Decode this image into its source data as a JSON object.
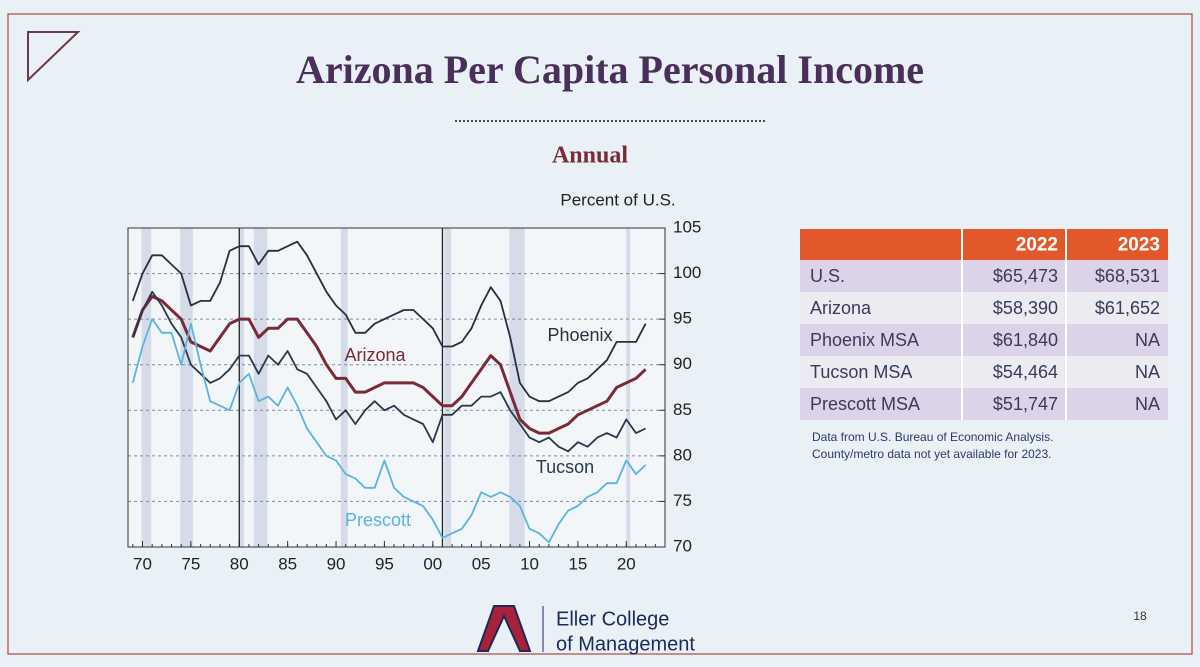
{
  "slide": {
    "title": "Arizona Per Capita Personal Income",
    "page_number": "18",
    "logo_line1": "Eller College",
    "logo_line2": "of Management"
  },
  "chart_data": {
    "type": "line",
    "title": "Annual",
    "y_label": "Percent of U.S.",
    "x": [
      1969,
      1970,
      1971,
      1972,
      1973,
      1974,
      1975,
      1976,
      1977,
      1978,
      1979,
      1980,
      1981,
      1982,
      1983,
      1984,
      1985,
      1986,
      1987,
      1988,
      1989,
      1990,
      1991,
      1992,
      1993,
      1994,
      1995,
      1996,
      1997,
      1998,
      1999,
      2000,
      2001,
      2002,
      2003,
      2004,
      2005,
      2006,
      2007,
      2008,
      2009,
      2010,
      2011,
      2012,
      2013,
      2014,
      2015,
      2016,
      2017,
      2018,
      2019,
      2020,
      2021,
      2022
    ],
    "series": [
      {
        "name": "Phoenix",
        "color": "#27303f",
        "values": [
          97,
          100,
          102,
          102,
          101,
          100,
          96.5,
          97,
          97,
          99,
          102.5,
          103,
          103,
          101,
          102.5,
          102.5,
          103,
          103.5,
          102,
          100,
          98,
          96.5,
          95.5,
          93.5,
          93.5,
          94.5,
          95,
          95.5,
          96,
          96,
          95,
          94,
          92,
          92,
          92.5,
          94,
          96.5,
          98.5,
          97,
          93,
          88,
          86.5,
          86,
          86,
          86.5,
          87,
          88,
          88.5,
          89.5,
          90.5,
          92.5,
          92.5,
          92.5,
          94.5
        ]
      },
      {
        "name": "Arizona",
        "color": "#7a2a38",
        "values": [
          93,
          96,
          97.5,
          97,
          96,
          95,
          92.5,
          92,
          91.5,
          93,
          94.5,
          95,
          95,
          93,
          94,
          94,
          95,
          95,
          93.5,
          92,
          90,
          88.5,
          88.5,
          87,
          87,
          87.5,
          88,
          88,
          88,
          88,
          87.5,
          86.5,
          85.5,
          85.5,
          86.5,
          88,
          89.5,
          91,
          90,
          87,
          84,
          83,
          82.5,
          82.5,
          83,
          83.5,
          84.5,
          85,
          85.5,
          86,
          87.5,
          88,
          88.5,
          89.5
        ]
      },
      {
        "name": "Tucson",
        "color": "#2a3a4a",
        "values": [
          93,
          96,
          98,
          96.5,
          94.5,
          93,
          90,
          89,
          88,
          88.5,
          89.5,
          91,
          91,
          89,
          91,
          90,
          91.5,
          89.5,
          89,
          87.5,
          86,
          84,
          85,
          83.5,
          85,
          86,
          85,
          85.5,
          84.5,
          84,
          83.5,
          81.5,
          84.5,
          84.5,
          85.5,
          85.5,
          86.5,
          86.5,
          87,
          85,
          83.5,
          82,
          81.5,
          82,
          81,
          80.5,
          81.5,
          81,
          82,
          82.5,
          82,
          84,
          82.5,
          83
        ]
      },
      {
        "name": "Prescott",
        "color": "#5ab4de",
        "values": [
          88,
          92,
          95,
          93.5,
          93.5,
          90,
          94.5,
          90,
          86,
          85.5,
          85,
          88,
          89,
          86,
          86.5,
          85.5,
          87.5,
          85.5,
          83,
          81.5,
          80,
          79.5,
          78,
          77.5,
          76.5,
          76.5,
          79.5,
          76.5,
          75.5,
          75,
          74.5,
          73,
          71,
          71.5,
          72,
          73.5,
          76,
          75.5,
          76,
          75.5,
          74.5,
          72,
          71.5,
          70.5,
          72.5,
          74,
          74.5,
          75.5,
          76,
          77,
          77,
          79.5,
          78,
          79
        ]
      }
    ],
    "recessions": [
      [
        1969.9,
        1970.9
      ],
      [
        1973.9,
        1975.2
      ],
      [
        1980,
        1980.5
      ],
      [
        1981.5,
        1982.9
      ],
      [
        1990.5,
        1991.2
      ],
      [
        2001.2,
        2001.9
      ],
      [
        2007.9,
        2009.5
      ],
      [
        2020,
        2020.4
      ]
    ],
    "xlim": [
      1968.5,
      2024
    ],
    "ylim": [
      70,
      105
    ],
    "xticks": [
      {
        "value": 1970,
        "label": "70"
      },
      {
        "value": 1975,
        "label": "75"
      },
      {
        "value": 1980,
        "label": "80"
      },
      {
        "value": 1985,
        "label": "85"
      },
      {
        "value": 1990,
        "label": "90"
      },
      {
        "value": 1995,
        "label": "95"
      },
      {
        "value": 2000,
        "label": "00"
      },
      {
        "value": 2005,
        "label": "05"
      },
      {
        "value": 2010,
        "label": "10"
      },
      {
        "value": 2015,
        "label": "15"
      },
      {
        "value": 2020,
        "label": "20"
      }
    ],
    "yticks": [
      70,
      75,
      80,
      85,
      90,
      95,
      100,
      105
    ],
    "grid": true
  },
  "table": {
    "columns": [
      "2022",
      "2023"
    ],
    "rows": [
      [
        "U.S.",
        "$65,473",
        "$68,531"
      ],
      [
        "Arizona",
        "$58,390",
        "$61,652"
      ],
      [
        "Phoenix MSA",
        "$61,840",
        "NA"
      ],
      [
        "Tucson MSA",
        "$54,464",
        "NA"
      ],
      [
        "Prescott MSA",
        "$51,747",
        "NA"
      ]
    ],
    "notes": [
      "Data from U.S. Bureau of Economic Analysis.",
      "County/metro data not yet available for 2023."
    ]
  }
}
